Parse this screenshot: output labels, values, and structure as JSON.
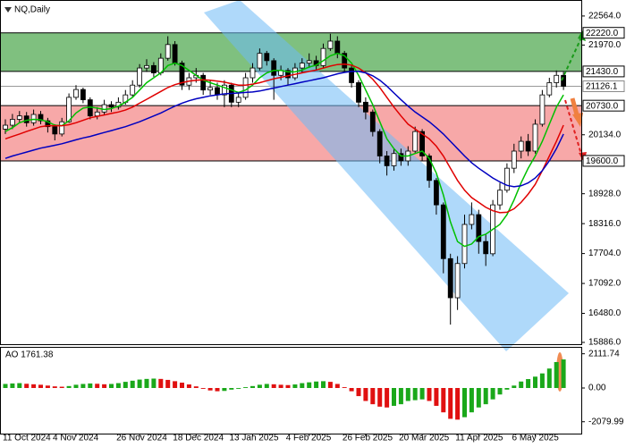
{
  "chart_data": {
    "type": "candlestick",
    "title": "NQ,Daily",
    "categories": [
      "11 Oct 2024",
      null,
      null,
      null,
      null,
      null,
      null,
      null,
      null,
      null,
      "4 Nov 2024",
      null,
      null,
      null,
      null,
      null,
      null,
      null,
      null,
      "26 Nov 2024",
      null,
      null,
      null,
      null,
      null,
      null,
      null,
      "18 Dec 2024",
      null,
      null,
      null,
      null,
      null,
      null,
      null,
      "13 Jan 2025",
      null,
      null,
      null,
      null,
      null,
      null,
      null,
      "4 Feb 2025",
      null,
      null,
      null,
      null,
      null,
      null,
      null,
      "26 Feb 2025",
      null,
      null,
      null,
      null,
      null,
      null,
      null,
      "20 Mar 2025",
      null,
      null,
      null,
      null,
      null,
      null,
      null,
      "11 Apr 2025",
      null,
      null,
      null,
      null,
      null,
      null,
      null,
      "6 May 2025",
      null,
      null,
      null,
      null
    ],
    "open": [
      20250,
      20330,
      20450,
      20520,
      20380,
      20550,
      20420,
      20300,
      20150,
      20400,
      20900,
      21060,
      20850,
      20520,
      20600,
      20750,
      20700,
      20800,
      20950,
      21150,
      21500,
      21550,
      21400,
      21700,
      21980,
      21600,
      21150,
      21300,
      21350,
      21050,
      21100,
      20950,
      21150,
      20800,
      20900,
      21300,
      21500,
      21800,
      21650,
      21350,
      21450,
      21300,
      21500,
      21600,
      21650,
      21550,
      21900,
      22050,
      21800,
      21500,
      21200,
      20800,
      20600,
      20200,
      19700,
      19500,
      19750,
      19600,
      19800,
      20200,
      19700,
      19200,
      18700,
      17600,
      16800,
      17500,
      18300,
      18500,
      17950,
      17700,
      18700,
      19000,
      19450,
      19800,
      20000,
      19800,
      20350,
      20950,
      21200,
      21350
    ],
    "high": [
      20450,
      20560,
      20620,
      20600,
      20650,
      20620,
      20480,
      20350,
      20480,
      20980,
      21150,
      21100,
      20900,
      20700,
      20850,
      20820,
      20900,
      21050,
      21250,
      21580,
      21680,
      21620,
      21800,
      22150,
      22050,
      21650,
      21400,
      21500,
      21400,
      21250,
      21200,
      21250,
      21200,
      21000,
      21400,
      21600,
      21900,
      21850,
      21700,
      21550,
      21500,
      21600,
      21700,
      21800,
      21750,
      22000,
      22200,
      22150,
      21850,
      21550,
      21250,
      20900,
      20650,
      20250,
      19800,
      19850,
      19850,
      19900,
      20300,
      20250,
      19750,
      19250,
      18750,
      17700,
      17650,
      18500,
      18750,
      18600,
      18100,
      18800,
      19150,
      19550,
      19950,
      20100,
      20150,
      20450,
      21050,
      21300,
      21450,
      21420
    ],
    "low": [
      20150,
      20250,
      20380,
      20300,
      20320,
      20350,
      20180,
      20020,
      20100,
      20380,
      20850,
      20780,
      20450,
      20450,
      20550,
      20600,
      20650,
      20750,
      20900,
      21100,
      21420,
      21320,
      21350,
      21650,
      21550,
      21050,
      21050,
      21200,
      20950,
      20950,
      20850,
      20700,
      20700,
      20700,
      20850,
      21200,
      21450,
      21550,
      20850,
      21250,
      21150,
      21250,
      21400,
      21500,
      21450,
      21500,
      21850,
      21700,
      21400,
      21100,
      20700,
      20450,
      20100,
      19550,
      19300,
      19400,
      19500,
      19500,
      19750,
      19600,
      19050,
      18500,
      17300,
      16250,
      16550,
      17400,
      18200,
      17700,
      17450,
      17650,
      18600,
      18950,
      19350,
      19650,
      19700,
      19750,
      20300,
      20900,
      21100,
      21050
    ],
    "close": [
      20330,
      20450,
      20520,
      20380,
      20550,
      20420,
      20300,
      20150,
      20400,
      20900,
      21060,
      20850,
      20520,
      20600,
      20750,
      20700,
      20800,
      20950,
      21150,
      21500,
      21550,
      21400,
      21700,
      21980,
      21600,
      21150,
      21300,
      21350,
      21050,
      21100,
      20950,
      21150,
      20800,
      20900,
      21300,
      21500,
      21800,
      21650,
      21350,
      21450,
      21300,
      21500,
      21600,
      21650,
      21550,
      21900,
      22050,
      21800,
      21500,
      21200,
      20800,
      20600,
      20200,
      19700,
      19500,
      19750,
      19600,
      19800,
      20200,
      19700,
      19200,
      18700,
      17600,
      16800,
      17500,
      18300,
      18500,
      17950,
      17700,
      18700,
      19000,
      19450,
      19800,
      20000,
      19800,
      20350,
      20950,
      21200,
      21350,
      21126.1
    ],
    "up_color": "#ffffff",
    "down_color": "#000000",
    "ylim": [
      15886,
      22800
    ],
    "yticks": [
      {
        "value": 22564,
        "label": "22564.0"
      },
      {
        "value": 21970,
        "label": "21970.0"
      },
      {
        "value": 20134,
        "label": "20134.0"
      },
      {
        "value": 18928,
        "label": "18928.0"
      },
      {
        "value": 18316,
        "label": "18316.0"
      },
      {
        "value": 17704,
        "label": "17704.0"
      },
      {
        "value": 17092,
        "label": "17092.0"
      },
      {
        "value": 16480,
        "label": "16480.0"
      },
      {
        "value": 15886,
        "label": "15886.0"
      }
    ],
    "zones": [
      {
        "from": 21430,
        "to": 22220,
        "color": "#7fc07f"
      },
      {
        "from": 19600,
        "to": 20730,
        "color": "#f7a8a8"
      }
    ],
    "levels": [
      {
        "value": 22220,
        "label": "22220.0"
      },
      {
        "value": 21430,
        "label": "21430.0"
      },
      {
        "value": 20730,
        "label": "20730.0"
      },
      {
        "value": 19600,
        "label": "19600.0"
      }
    ],
    "current_price": {
      "value": 21126.1,
      "label": "21126.1"
    },
    "series": [
      {
        "color": "#00c000",
        "values": [
          20200,
          20280,
          20380,
          20430,
          20450,
          20440,
          20400,
          20330,
          20320,
          20420,
          20580,
          20680,
          20700,
          20680,
          20650,
          20670,
          20720,
          20800,
          20900,
          21050,
          21200,
          21300,
          21400,
          21550,
          21600,
          21550,
          21450,
          21350,
          21250,
          21200,
          21150,
          21100,
          21050,
          21000,
          21050,
          21150,
          21300,
          21400,
          21450,
          21450,
          21420,
          21420,
          21460,
          21520,
          21560,
          21650,
          21750,
          21800,
          21750,
          21600,
          21350,
          21050,
          20750,
          20400,
          20050,
          19850,
          19700,
          19700,
          19750,
          19800,
          19650,
          19350,
          18900,
          18350,
          17950,
          17850,
          17900,
          18050,
          18100,
          18200,
          18300,
          18500,
          18800,
          19150,
          19450,
          19700,
          20000,
          20350,
          20700,
          20950
        ]
      },
      {
        "color": "#e00000",
        "values": [
          20050,
          20100,
          20150,
          20200,
          20250,
          20300,
          20320,
          20320,
          20320,
          20340,
          20380,
          20430,
          20480,
          20510,
          20540,
          20570,
          20600,
          20640,
          20700,
          20780,
          20860,
          20940,
          21020,
          21100,
          21160,
          21200,
          21230,
          21250,
          21260,
          21250,
          21230,
          21210,
          21180,
          21150,
          21150,
          21170,
          21200,
          21240,
          21280,
          21310,
          21340,
          21370,
          21400,
          21430,
          21460,
          21500,
          21540,
          21570,
          21580,
          21560,
          21500,
          21400,
          21270,
          21100,
          20900,
          20700,
          20520,
          20350,
          20250,
          20150,
          20050,
          19900,
          19700,
          19450,
          19200,
          19000,
          18850,
          18750,
          18650,
          18580,
          18540,
          18550,
          18620,
          18750,
          18920,
          19120,
          19400,
          19700,
          20000,
          20330
        ]
      },
      {
        "color": "#0000c0",
        "values": [
          19650,
          19700,
          19740,
          19780,
          19820,
          19860,
          19890,
          19920,
          19950,
          19990,
          20030,
          20070,
          20100,
          20140,
          20180,
          20220,
          20260,
          20300,
          20350,
          20400,
          20460,
          20520,
          20580,
          20650,
          20720,
          20780,
          20830,
          20870,
          20900,
          20930,
          20950,
          20970,
          20980,
          20990,
          21000,
          21010,
          21030,
          21060,
          21090,
          21120,
          21150,
          21180,
          21210,
          21240,
          21270,
          21300,
          21340,
          21380,
          21410,
          21430,
          21430,
          21400,
          21340,
          21250,
          21130,
          20990,
          20850,
          20720,
          20600,
          20500,
          20400,
          20280,
          20150,
          20000,
          19850,
          19700,
          19560,
          19450,
          19350,
          19250,
          19170,
          19100,
          19070,
          19090,
          19150,
          19250,
          19400,
          19600,
          19850,
          20150
        ]
      }
    ],
    "ao": {
      "label": "AO 1761.38",
      "up_color": "#1aa81a",
      "down_color": "#e01010",
      "ylim": [
        -2811,
        2536
      ],
      "yticks": [
        2111.74,
        {
          "value": 0,
          "label": "0.00"
        },
        -2079.99
      ],
      "values": [
        250,
        280,
        300,
        260,
        230,
        200,
        150,
        100,
        80,
        120,
        200,
        250,
        280,
        260,
        230,
        250,
        300,
        380,
        450,
        520,
        560,
        580,
        560,
        500,
        420,
        330,
        220,
        100,
        -50,
        -150,
        -200,
        -180,
        -100,
        -50,
        50,
        120,
        200,
        250,
        230,
        200,
        180,
        220,
        300,
        350,
        400,
        420,
        380,
        250,
        50,
        -200,
        -500,
        -800,
        -1000,
        -1150,
        -1200,
        -1100,
        -1000,
        -800,
        -750,
        -700,
        -800,
        -1100,
        -1500,
        -1900,
        -1950,
        -1800,
        -1500,
        -1200,
        -1000,
        -700,
        -400,
        -100,
        150,
        400,
        550,
        700,
        900,
        1200,
        1600,
        1761.38
      ]
    }
  }
}
